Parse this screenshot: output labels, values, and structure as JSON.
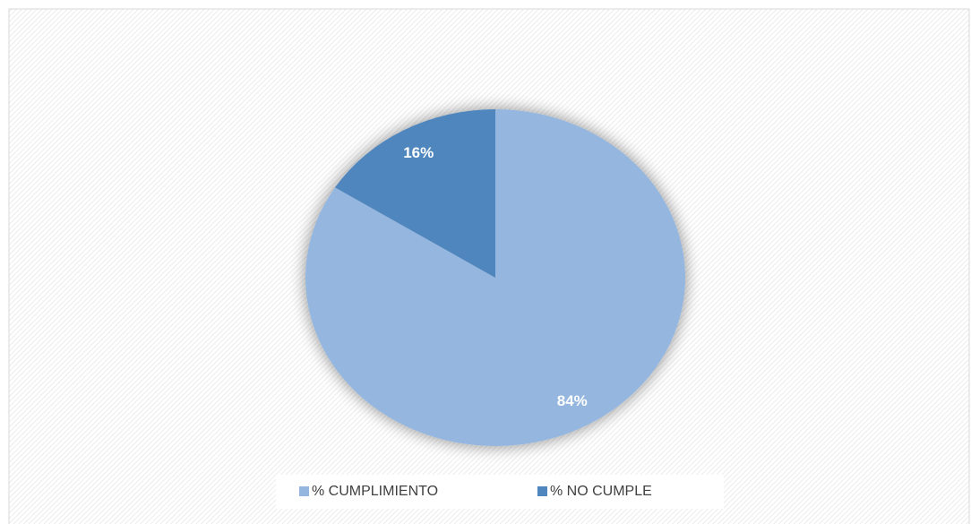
{
  "chart_data": {
    "type": "pie",
    "categories": [
      "% CUMPLIMIENTO",
      "% NO CUMPLE"
    ],
    "values": [
      84,
      16
    ],
    "value_labels": [
      "84%",
      "16%"
    ],
    "colors": [
      "#95b6de",
      "#4f86be"
    ],
    "legend": "bottom"
  }
}
